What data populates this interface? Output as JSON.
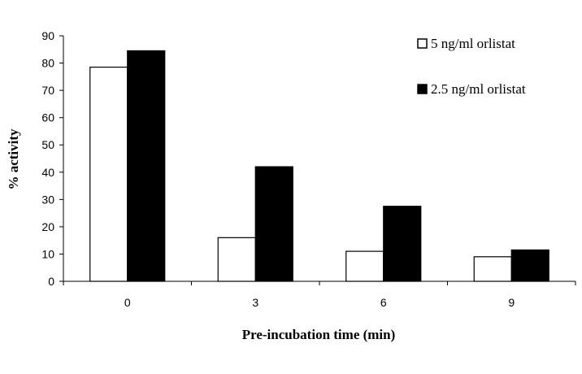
{
  "chart_data": {
    "type": "bar",
    "title": "",
    "xlabel": "Pre-incubation time (min)",
    "ylabel": "% activity",
    "categories": [
      "0",
      "3",
      "6",
      "9"
    ],
    "ylim": [
      0,
      90
    ],
    "yticks": [
      0,
      10,
      20,
      30,
      40,
      50,
      60,
      70,
      80,
      90
    ],
    "grid": false,
    "legend_position": "top-right",
    "series": [
      {
        "name": "5 ng/ml orlistat",
        "values": [
          78.5,
          16,
          11,
          9
        ],
        "color": "#ffffff",
        "stroke": "#000000"
      },
      {
        "name": "2.5 ng/ml orlistat",
        "values": [
          84.5,
          42,
          27.5,
          11.5
        ],
        "color": "#000000",
        "stroke": "#000000"
      }
    ]
  }
}
